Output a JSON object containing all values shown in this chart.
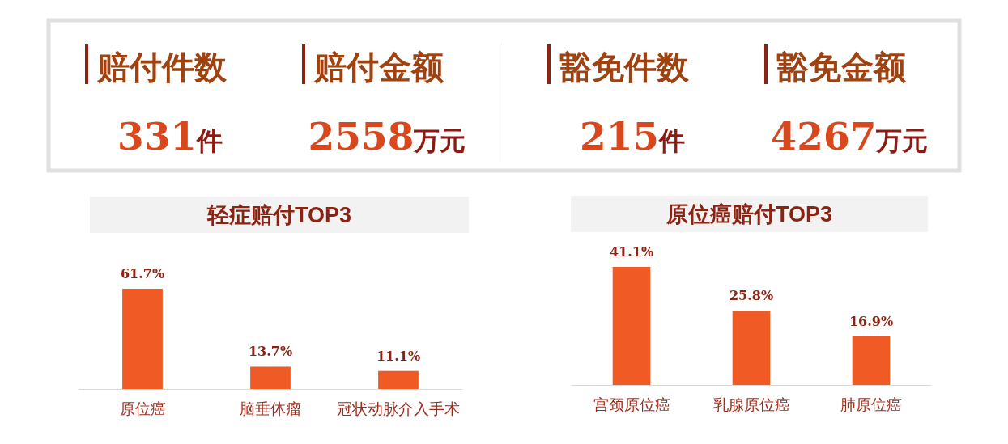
{
  "chart_data": [
    {
      "type": "other",
      "annotations": [
        "赔付件数",
        "赔付金额",
        "豁免件数",
        "豁免金额",
        "331件",
        "2558万元",
        "215件",
        "4267万元"
      ]
    },
    {
      "type": "bar",
      "title": "轻症赔付TOP3",
      "categories": [
        "原位癌",
        "脑垂体瘤",
        "冠状动脉介入手术"
      ],
      "values": [
        61.7,
        13.7,
        11.1
      ],
      "value_labels": [
        "61.7%",
        "13.7%",
        "11.1%"
      ],
      "color": "#f05a24"
    },
    {
      "type": "bar",
      "title": "原位癌赔付TOP3",
      "categories": [
        "宫颈原位癌",
        "乳腺原位癌",
        "肺原位癌"
      ],
      "values": [
        41.1,
        25.8,
        16.9
      ],
      "value_labels": [
        "41.1%",
        "25.8%",
        "16.9%"
      ],
      "color": "#f05a24"
    }
  ]
}
